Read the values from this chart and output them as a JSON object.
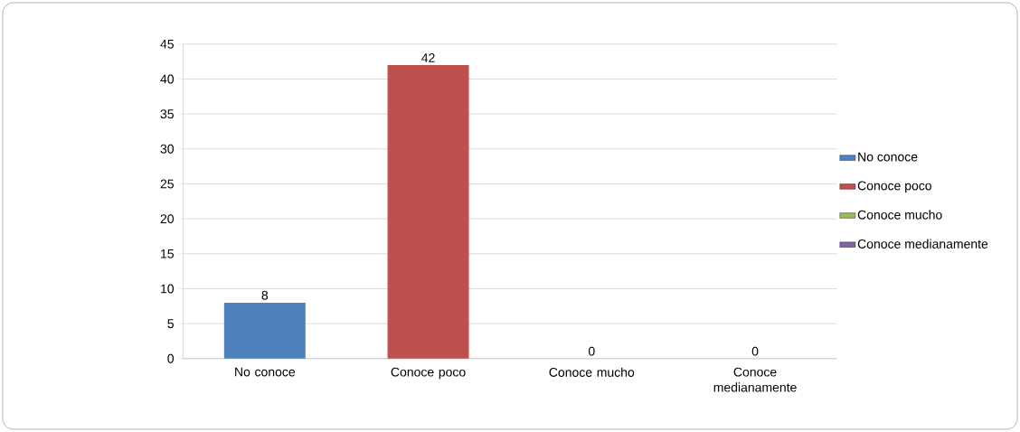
{
  "chart_data": {
    "type": "bar",
    "categories": [
      "No conoce",
      "Conoce poco",
      "Conoce mucho",
      "Conoce medianamente"
    ],
    "series": [
      {
        "name": "No conoce",
        "color": "#4f81bd",
        "values": [
          8,
          null,
          null,
          null
        ]
      },
      {
        "name": "Conoce poco",
        "color": "#c0504d",
        "values": [
          null,
          42,
          null,
          null
        ]
      },
      {
        "name": "Conoce mucho",
        "color": "#9bbb59",
        "values": [
          null,
          null,
          0,
          null
        ]
      },
      {
        "name": "Conoce medianamente",
        "color": "#8064a2",
        "values": [
          null,
          null,
          null,
          0
        ]
      }
    ],
    "ylim": [
      0,
      45
    ],
    "yticks": [
      0,
      5,
      10,
      15,
      20,
      25,
      30,
      35,
      40,
      45
    ],
    "grid": "y",
    "legend": "right",
    "data_labels": true
  }
}
